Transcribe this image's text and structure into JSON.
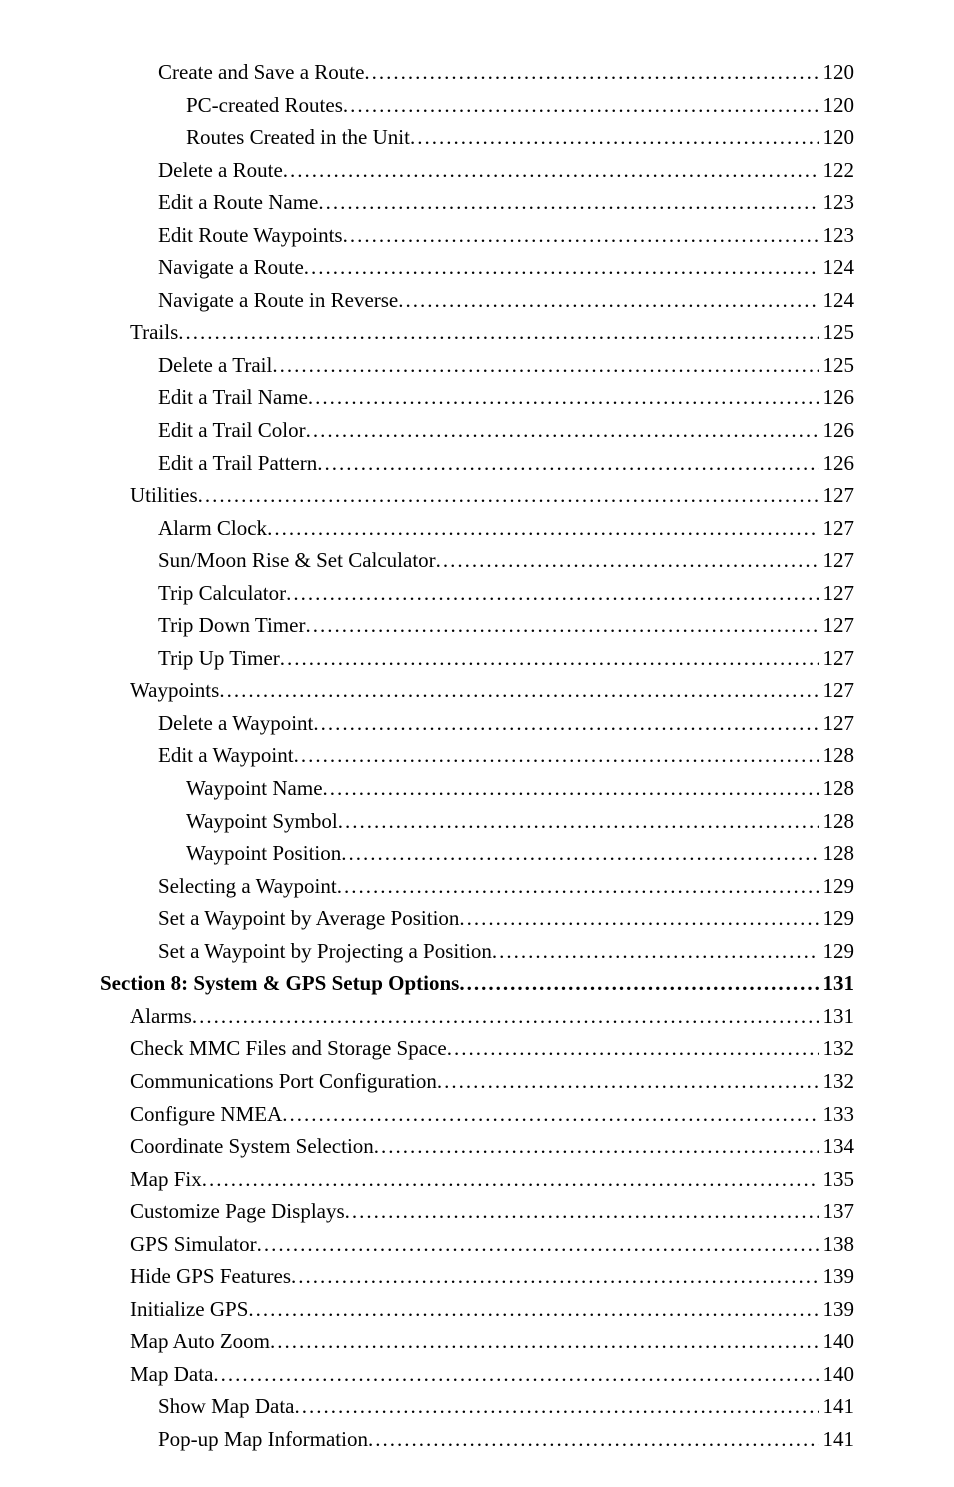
{
  "toc": [
    {
      "label": "Create and Save a Route",
      "page": "120",
      "indent": 2,
      "bold": false
    },
    {
      "label": "PC-created Routes",
      "page": "120",
      "indent": 3,
      "bold": false
    },
    {
      "label": "Routes Created in the Unit",
      "page": "120",
      "indent": 3,
      "bold": false
    },
    {
      "label": "Delete a Route",
      "page": "122",
      "indent": 2,
      "bold": false
    },
    {
      "label": "Edit a Route Name",
      "page": "123",
      "indent": 2,
      "bold": false
    },
    {
      "label": "Edit Route Waypoints",
      "page": "123",
      "indent": 2,
      "bold": false
    },
    {
      "label": "Navigate a Route",
      "page": "124",
      "indent": 2,
      "bold": false
    },
    {
      "label": "Navigate a Route in Reverse",
      "page": "124",
      "indent": 2,
      "bold": false
    },
    {
      "label": "Trails",
      "page": "125",
      "indent": 1,
      "bold": false
    },
    {
      "label": "Delete a Trail",
      "page": "125",
      "indent": 2,
      "bold": false
    },
    {
      "label": "Edit a Trail Name",
      "page": "126",
      "indent": 2,
      "bold": false
    },
    {
      "label": "Edit a Trail Color",
      "page": "126",
      "indent": 2,
      "bold": false
    },
    {
      "label": "Edit a Trail Pattern",
      "page": "126",
      "indent": 2,
      "bold": false
    },
    {
      "label": "Utilities",
      "page": "127",
      "indent": 1,
      "bold": false
    },
    {
      "label": "Alarm Clock",
      "page": "127",
      "indent": 2,
      "bold": false
    },
    {
      "label": "Sun/Moon Rise & Set Calculator",
      "page": "127",
      "indent": 2,
      "bold": false
    },
    {
      "label": "Trip Calculator",
      "page": "127",
      "indent": 2,
      "bold": false
    },
    {
      "label": "Trip Down Timer",
      "page": "127",
      "indent": 2,
      "bold": false
    },
    {
      "label": "Trip Up Timer",
      "page": "127",
      "indent": 2,
      "bold": false
    },
    {
      "label": "Waypoints",
      "page": "127",
      "indent": 1,
      "bold": false
    },
    {
      "label": "Delete a Waypoint",
      "page": "127",
      "indent": 2,
      "bold": false
    },
    {
      "label": "Edit a Waypoint",
      "page": "128",
      "indent": 2,
      "bold": false
    },
    {
      "label": "Waypoint Name",
      "page": "128",
      "indent": 3,
      "bold": false
    },
    {
      "label": "Waypoint Symbol",
      "page": "128",
      "indent": 3,
      "bold": false
    },
    {
      "label": "Waypoint Position",
      "page": "128",
      "indent": 3,
      "bold": false
    },
    {
      "label": "Selecting a Waypoint",
      "page": "129",
      "indent": 2,
      "bold": false
    },
    {
      "label": "Set a Waypoint by Average Position",
      "page": "129",
      "indent": 2,
      "bold": false
    },
    {
      "label": "Set a Waypoint by Projecting a Position",
      "page": "129",
      "indent": 2,
      "bold": false
    },
    {
      "label": "Section 8: System & GPS Setup Options",
      "page": "131",
      "indent": 0,
      "bold": true
    },
    {
      "label": "Alarms",
      "page": "131",
      "indent": 1,
      "bold": false
    },
    {
      "label": "Check MMC Files and Storage Space",
      "page": "132",
      "indent": 1,
      "bold": false
    },
    {
      "label": "Communications Port Configuration",
      "page": "132",
      "indent": 1,
      "bold": false
    },
    {
      "label": "Configure NMEA",
      "page": "133",
      "indent": 1,
      "bold": false
    },
    {
      "label": "Coordinate System Selection",
      "page": "134",
      "indent": 1,
      "bold": false
    },
    {
      "label": "Map Fix",
      "page": "135",
      "indent": 1,
      "bold": false
    },
    {
      "label": "Customize Page Displays",
      "page": "137",
      "indent": 1,
      "bold": false
    },
    {
      "label": "GPS Simulator",
      "page": "138",
      "indent": 1,
      "bold": false
    },
    {
      "label": "Hide GPS Features",
      "page": "139",
      "indent": 1,
      "bold": false
    },
    {
      "label": "Initialize GPS",
      "page": "139",
      "indent": 1,
      "bold": false
    },
    {
      "label": "Map Auto Zoom",
      "page": "140",
      "indent": 1,
      "bold": false
    },
    {
      "label": "Map Data",
      "page": "140",
      "indent": 1,
      "bold": false
    },
    {
      "label": "Show Map Data",
      "page": "141",
      "indent": 2,
      "bold": false
    },
    {
      "label": "Pop-up Map Information",
      "page": "141",
      "indent": 2,
      "bold": false
    }
  ]
}
